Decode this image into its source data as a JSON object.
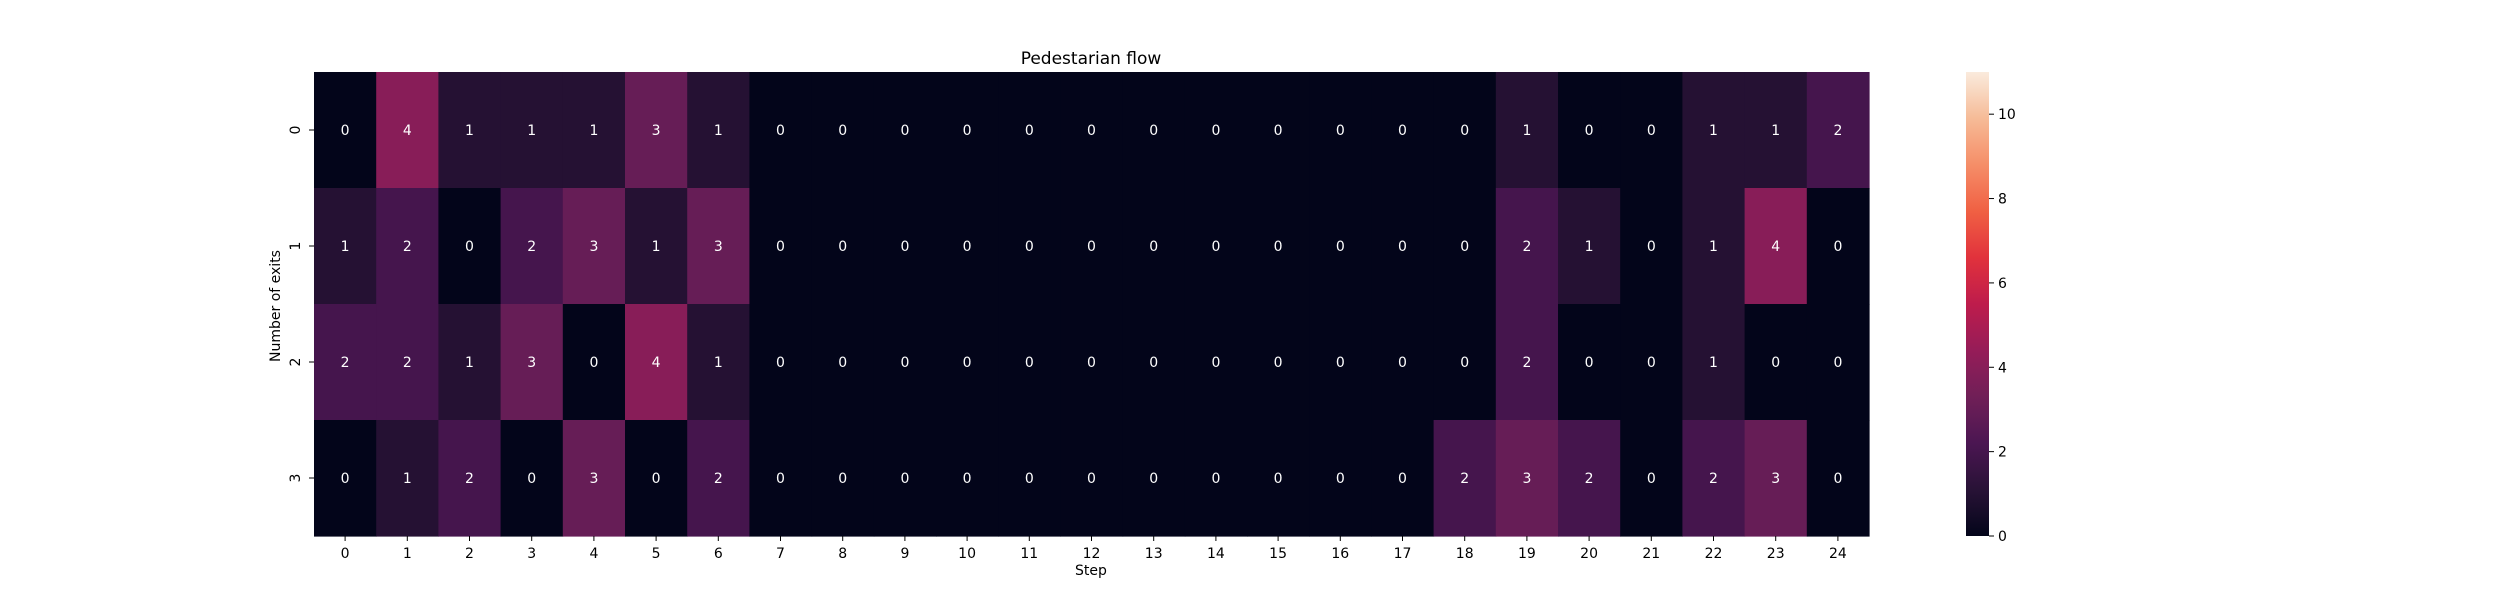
{
  "chart_data": {
    "type": "heatmap",
    "title": "Pedestarian flow",
    "xlabel": "Step",
    "ylabel": "Number of exits",
    "x_categories": [
      "0",
      "1",
      "2",
      "3",
      "4",
      "5",
      "6",
      "7",
      "8",
      "9",
      "10",
      "11",
      "12",
      "13",
      "14",
      "15",
      "16",
      "17",
      "18",
      "19",
      "20",
      "21",
      "22",
      "23",
      "24"
    ],
    "y_categories": [
      "0",
      "1",
      "2",
      "3"
    ],
    "values": [
      [
        0,
        4,
        1,
        1,
        1,
        3,
        1,
        0,
        0,
        0,
        0,
        0,
        0,
        0,
        0,
        0,
        0,
        0,
        0,
        1,
        0,
        0,
        1,
        1,
        2
      ],
      [
        1,
        2,
        0,
        2,
        3,
        1,
        3,
        0,
        0,
        0,
        0,
        0,
        0,
        0,
        0,
        0,
        0,
        0,
        0,
        2,
        1,
        0,
        1,
        4,
        0
      ],
      [
        2,
        2,
        1,
        3,
        0,
        4,
        1,
        0,
        0,
        0,
        0,
        0,
        0,
        0,
        0,
        0,
        0,
        0,
        0,
        2,
        0,
        0,
        1,
        0,
        0
      ],
      [
        0,
        1,
        2,
        0,
        3,
        0,
        2,
        0,
        0,
        0,
        0,
        0,
        0,
        0,
        0,
        0,
        0,
        0,
        2,
        3,
        2,
        0,
        2,
        3,
        0
      ]
    ],
    "colorbar": {
      "vmin": 0,
      "vmax": 11,
      "ticks": [
        "0",
        "2",
        "4",
        "6",
        "8",
        "10"
      ],
      "colormap": "rocket"
    }
  }
}
